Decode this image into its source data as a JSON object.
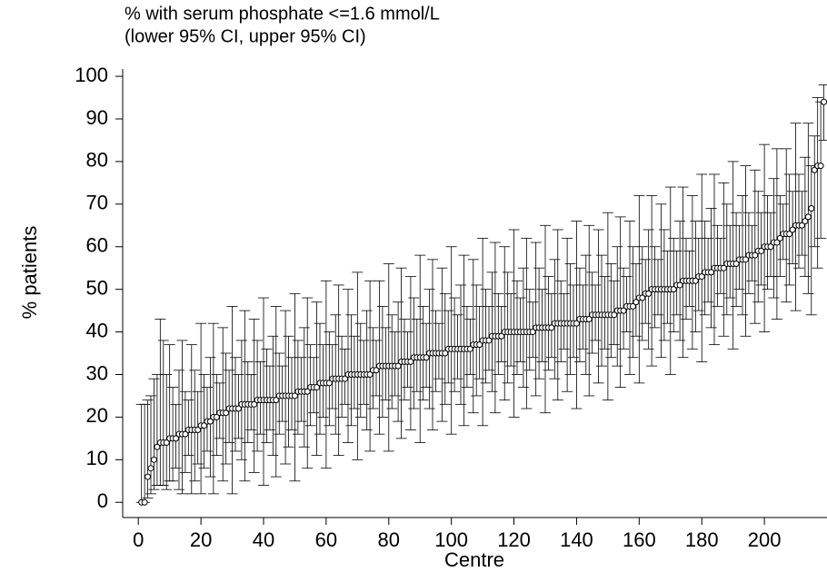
{
  "chart_data": {
    "type": "errorbar",
    "title": "% with serum phosphate <=1.6 mmol/L",
    "subtitle": "(lower 95% CI, upper 95% CI)",
    "x_label": "Centre",
    "y_label": "% patients",
    "color": "#000000",
    "xlim": [
      -5,
      220
    ],
    "xticks": [
      0,
      20,
      40,
      60,
      80,
      100,
      120,
      140,
      160,
      180,
      200
    ],
    "ylim": [
      -4,
      103
    ],
    "yticks": [
      0,
      10,
      20,
      30,
      40,
      50,
      60,
      70,
      80,
      90,
      100
    ],
    "x": [
      1,
      2,
      3,
      4,
      5,
      6,
      7,
      8,
      9,
      10,
      11,
      12,
      13,
      14,
      15,
      16,
      17,
      18,
      19,
      20,
      21,
      22,
      23,
      24,
      25,
      26,
      27,
      28,
      29,
      30,
      31,
      32,
      33,
      34,
      35,
      36,
      37,
      38,
      39,
      40,
      41,
      42,
      43,
      44,
      45,
      46,
      47,
      48,
      49,
      50,
      51,
      52,
      53,
      54,
      55,
      56,
      57,
      58,
      59,
      60,
      61,
      62,
      63,
      64,
      65,
      66,
      67,
      68,
      69,
      70,
      71,
      72,
      73,
      74,
      75,
      76,
      77,
      78,
      79,
      80,
      81,
      82,
      83,
      84,
      85,
      86,
      87,
      88,
      89,
      90,
      91,
      92,
      93,
      94,
      95,
      96,
      97,
      98,
      99,
      100,
      101,
      102,
      103,
      104,
      105,
      106,
      107,
      108,
      109,
      110,
      111,
      112,
      113,
      114,
      115,
      116,
      117,
      118,
      119,
      120,
      121,
      122,
      123,
      124,
      125,
      126,
      127,
      128,
      129,
      130,
      131,
      132,
      133,
      134,
      135,
      136,
      137,
      138,
      139,
      140,
      141,
      142,
      143,
      144,
      145,
      146,
      147,
      148,
      149,
      150,
      151,
      152,
      153,
      154,
      155,
      156,
      157,
      158,
      159,
      160,
      161,
      162,
      163,
      164,
      165,
      166,
      167,
      168,
      169,
      170,
      171,
      172,
      173,
      174,
      175,
      176,
      177,
      178,
      179,
      180,
      181,
      182,
      183,
      184,
      185,
      186,
      187,
      188,
      189,
      190,
      191,
      192,
      193,
      194,
      195,
      196,
      197,
      198,
      199,
      200,
      201,
      202,
      203,
      204,
      205,
      206,
      207,
      208,
      209,
      210,
      211,
      212,
      213,
      214,
      215,
      216,
      217,
      218,
      219
    ],
    "values": [
      0,
      0,
      6,
      8,
      10,
      13,
      14,
      14,
      14,
      15,
      15,
      15,
      16,
      16,
      16,
      17,
      17,
      17,
      17,
      18,
      18,
      19,
      19,
      20,
      20,
      21,
      21,
      21,
      22,
      22,
      22,
      22,
      23,
      23,
      23,
      23,
      23,
      24,
      24,
      24,
      24,
      24,
      24,
      24,
      25,
      25,
      25,
      25,
      25,
      25,
      26,
      26,
      26,
      26,
      27,
      27,
      27,
      28,
      28,
      28,
      28,
      29,
      29,
      29,
      29,
      29,
      30,
      30,
      30,
      30,
      30,
      30,
      30,
      30,
      31,
      31,
      32,
      32,
      32,
      32,
      32,
      32,
      32,
      33,
      33,
      33,
      33,
      34,
      34,
      34,
      34,
      34,
      35,
      35,
      35,
      35,
      35,
      35,
      36,
      36,
      36,
      36,
      36,
      36,
      36,
      36,
      37,
      37,
      37,
      38,
      38,
      38,
      39,
      39,
      39,
      39,
      40,
      40,
      40,
      40,
      40,
      40,
      40,
      40,
      40,
      40,
      41,
      41,
      41,
      41,
      41,
      41,
      42,
      42,
      42,
      42,
      42,
      42,
      42,
      42,
      43,
      43,
      43,
      43,
      44,
      44,
      44,
      44,
      44,
      44,
      44,
      44,
      45,
      45,
      45,
      46,
      46,
      46,
      47,
      48,
      48,
      49,
      49,
      50,
      50,
      50,
      50,
      50,
      50,
      50,
      50,
      51,
      51,
      52,
      52,
      52,
      52,
      52,
      53,
      53,
      54,
      54,
      54,
      55,
      55,
      55,
      55,
      56,
      56,
      56,
      56,
      57,
      57,
      57,
      58,
      58,
      58,
      59,
      59,
      60,
      60,
      60,
      61,
      61,
      62,
      63,
      63,
      63,
      64,
      65,
      65,
      65,
      66,
      67,
      69,
      78,
      79,
      79,
      94
    ],
    "lower": [
      0,
      0,
      1,
      2,
      3,
      4,
      4,
      4,
      3,
      5,
      5,
      8,
      3,
      2,
      7,
      11,
      2,
      5,
      9,
      2,
      8,
      12,
      6,
      2,
      11,
      15,
      5,
      9,
      14,
      2,
      12,
      15,
      10,
      5,
      14,
      17,
      7,
      12,
      16,
      4,
      14,
      17,
      11,
      6,
      16,
      19,
      9,
      13,
      17,
      5,
      16,
      19,
      13,
      8,
      18,
      21,
      11,
      16,
      20,
      8,
      18,
      22,
      16,
      11,
      20,
      23,
      14,
      18,
      22,
      10,
      20,
      23,
      17,
      12,
      22,
      25,
      16,
      20,
      24,
      12,
      22,
      25,
      19,
      15,
      24,
      27,
      17,
      22,
      26,
      14,
      24,
      27,
      22,
      17,
      26,
      29,
      19,
      23,
      28,
      16,
      26,
      29,
      23,
      18,
      27,
      30,
      21,
      25,
      29,
      18,
      28,
      31,
      26,
      21,
      30,
      33,
      24,
      28,
      32,
      20,
      30,
      33,
      27,
      22,
      31,
      34,
      25,
      29,
      33,
      21,
      31,
      34,
      29,
      24,
      33,
      36,
      26,
      30,
      34,
      22,
      33,
      36,
      30,
      25,
      35,
      38,
      28,
      32,
      36,
      24,
      34,
      37,
      32,
      27,
      36,
      40,
      30,
      34,
      39,
      28,
      38,
      42,
      36,
      32,
      41,
      44,
      34,
      38,
      42,
      30,
      40,
      44,
      38,
      34,
      43,
      46,
      36,
      40,
      45,
      33,
      44,
      47,
      41,
      37,
      46,
      49,
      39,
      44,
      48,
      36,
      46,
      50,
      44,
      39,
      49,
      52,
      42,
      47,
      51,
      40,
      50,
      53,
      48,
      43,
      53,
      57,
      47,
      51,
      56,
      45,
      55,
      58,
      53,
      49,
      44,
      60,
      55,
      62,
      85
    ],
    "upper": [
      23,
      23,
      24,
      25,
      29,
      30,
      43,
      38,
      30,
      37,
      27,
      23,
      31,
      38,
      26,
      24,
      37,
      31,
      26,
      42,
      30,
      27,
      34,
      42,
      30,
      28,
      41,
      35,
      31,
      46,
      34,
      30,
      38,
      45,
      33,
      30,
      43,
      38,
      33,
      48,
      36,
      32,
      39,
      46,
      35,
      32,
      45,
      39,
      34,
      49,
      38,
      34,
      41,
      48,
      37,
      34,
      47,
      42,
      37,
      52,
      40,
      37,
      44,
      51,
      39,
      36,
      50,
      44,
      39,
      54,
      42,
      38,
      45,
      52,
      41,
      38,
      52,
      46,
      41,
      56,
      44,
      40,
      47,
      55,
      43,
      40,
      53,
      48,
      43,
      58,
      46,
      42,
      50,
      57,
      45,
      42,
      55,
      49,
      45,
      60,
      48,
      44,
      51,
      58,
      46,
      43,
      57,
      51,
      46,
      62,
      50,
      46,
      54,
      61,
      49,
      46,
      60,
      54,
      49,
      64,
      52,
      48,
      55,
      62,
      50,
      47,
      61,
      55,
      50,
      65,
      53,
      49,
      57,
      64,
      52,
      49,
      62,
      56,
      51,
      66,
      55,
      51,
      58,
      65,
      54,
      51,
      64,
      58,
      53,
      68,
      56,
      52,
      60,
      67,
      55,
      53,
      66,
      60,
      56,
      72,
      60,
      57,
      64,
      72,
      60,
      57,
      70,
      64,
      59,
      74,
      62,
      59,
      66,
      74,
      62,
      59,
      72,
      66,
      62,
      77,
      66,
      62,
      69,
      77,
      65,
      62,
      75,
      70,
      65,
      80,
      68,
      65,
      72,
      79,
      68,
      65,
      78,
      73,
      68,
      84,
      72,
      68,
      76,
      83,
      72,
      70,
      83,
      77,
      73,
      89,
      77,
      73,
      81,
      89,
      79,
      86,
      95,
      94,
      98
    ]
  }
}
